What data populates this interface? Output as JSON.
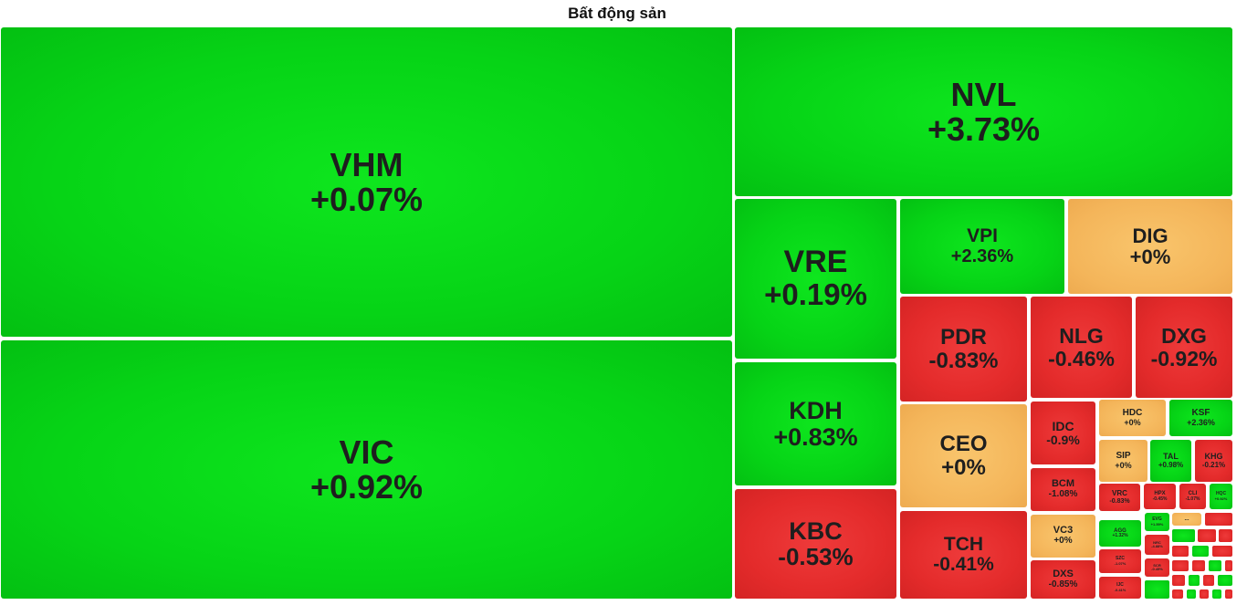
{
  "title": "Bất động sản",
  "colors": {
    "positive": "#06d416",
    "negative": "#e42b2b",
    "zero": "#f4b55a"
  },
  "chart_data": {
    "type": "treemap",
    "title": "Bất động sản",
    "items": [
      {
        "ticker": "VHM",
        "change": "+0.07%",
        "value": 0.07
      },
      {
        "ticker": "VIC",
        "change": "+0.92%",
        "value": 0.92
      },
      {
        "ticker": "NVL",
        "change": "+3.73%",
        "value": 3.73
      },
      {
        "ticker": "VRE",
        "change": "+0.19%",
        "value": 0.19
      },
      {
        "ticker": "KDH",
        "change": "+0.83%",
        "value": 0.83
      },
      {
        "ticker": "KBC",
        "change": "-0.53%",
        "value": -0.53
      },
      {
        "ticker": "VPI",
        "change": "+2.36%",
        "value": 2.36
      },
      {
        "ticker": "DIG",
        "change": "+0%",
        "value": 0
      },
      {
        "ticker": "PDR",
        "change": "-0.83%",
        "value": -0.83
      },
      {
        "ticker": "NLG",
        "change": "-0.46%",
        "value": -0.46
      },
      {
        "ticker": "DXG",
        "change": "-0.92%",
        "value": -0.92
      },
      {
        "ticker": "CEO",
        "change": "+0%",
        "value": 0
      },
      {
        "ticker": "TCH",
        "change": "-0.41%",
        "value": -0.41
      },
      {
        "ticker": "IDC",
        "change": "-0.9%",
        "value": -0.9
      },
      {
        "ticker": "BCM",
        "change": "-1.08%",
        "value": -1.08
      },
      {
        "ticker": "VC3",
        "change": "+0%",
        "value": 0
      },
      {
        "ticker": "DXS",
        "change": "-0.85%",
        "value": -0.85
      },
      {
        "ticker": "HDC",
        "change": "+0%",
        "value": 0
      },
      {
        "ticker": "KSF",
        "change": "+2.36%",
        "value": 2.36
      },
      {
        "ticker": "SIP",
        "change": "+0%",
        "value": 0
      },
      {
        "ticker": "TAL",
        "change": "+0.98%",
        "value": 0.98
      },
      {
        "ticker": "KHG",
        "change": "-0.21%",
        "value": -0.21
      },
      {
        "ticker": "VRC",
        "change": "-0.83%",
        "value": -0.83
      },
      {
        "ticker": "HPX",
        "change": "-0.45%",
        "value": -0.45
      },
      {
        "ticker": "CLI",
        "change": "-1.07%",
        "value": -1.07
      },
      {
        "ticker": "HQC",
        "change": "+0.92%",
        "value": 0.92
      },
      {
        "ticker": "EVG",
        "change": "+1.59%",
        "value": 1.59
      },
      {
        "ticker": "AGG",
        "change": "+1.32%",
        "value": 1.32
      },
      {
        "ticker": "NRC",
        "change": "-4.88%",
        "value": -4.88
      },
      {
        "ticker": "SZC",
        "change": "-1.07%",
        "value": -1.07
      },
      {
        "ticker": "SCR",
        "change": "-0.45%",
        "value": -0.45
      },
      {
        "ticker": "IJC",
        "change": "-0.41%",
        "value": -0.41
      },
      {
        "ticker": "...",
        "change": "",
        "value": 0
      }
    ]
  }
}
